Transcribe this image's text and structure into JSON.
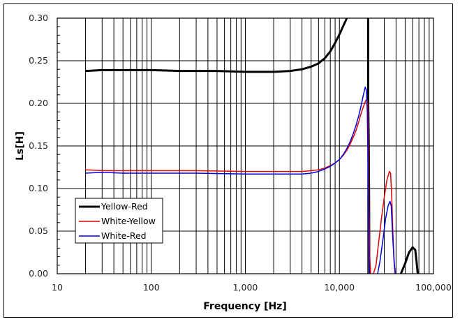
{
  "chart_data": {
    "type": "line",
    "title": "",
    "xlabel": "Frequency [Hz]",
    "ylabel": "Ls[H]",
    "xscale": "log",
    "xlim": [
      10,
      100000
    ],
    "ylim": [
      0,
      0.3
    ],
    "x_tick_labels": [
      "10",
      "100",
      "1,000",
      "10,000",
      "100,000"
    ],
    "x_ticks": [
      10,
      100,
      1000,
      10000,
      100000
    ],
    "y_tick_labels": [
      "0.00",
      "0.05",
      "0.10",
      "0.15",
      "0.20",
      "0.25",
      "0.30"
    ],
    "y_ticks": [
      0,
      0.05,
      0.1,
      0.15,
      0.2,
      0.25,
      0.3
    ],
    "grid": true,
    "legend_position": "lower-left inside plot",
    "series": [
      {
        "name": "Yellow-Red",
        "color": "#000000",
        "width": 3,
        "points": [
          [
            20,
            0.238
          ],
          [
            30,
            0.239
          ],
          [
            50,
            0.239
          ],
          [
            100,
            0.239
          ],
          [
            200,
            0.238
          ],
          [
            500,
            0.238
          ],
          [
            1000,
            0.237
          ],
          [
            2000,
            0.237
          ],
          [
            3000,
            0.238
          ],
          [
            4000,
            0.24
          ],
          [
            5000,
            0.243
          ],
          [
            6000,
            0.247
          ],
          [
            7000,
            0.253
          ],
          [
            8000,
            0.261
          ],
          [
            9000,
            0.271
          ],
          [
            10000,
            0.281
          ],
          [
            11000,
            0.291
          ],
          [
            12000,
            0.3
          ]
        ],
        "segments": [
          [
            [
              20200,
              0.3
            ],
            [
              20200,
              0.21
            ],
            [
              20500,
              0.15
            ],
            [
              20700,
              0.08
            ],
            [
              20800,
              0.0
            ]
          ],
          [
            [
              45000,
              0.0
            ],
            [
              50000,
              0.012
            ],
            [
              55000,
              0.025
            ],
            [
              60000,
              0.031
            ],
            [
              64000,
              0.028
            ],
            [
              66000,
              0.015
            ],
            [
              68000,
              0.0
            ]
          ]
        ]
      },
      {
        "name": "White-Yellow",
        "color": "#e00000",
        "width": 1.5,
        "points": [
          [
            20,
            0.122
          ],
          [
            30,
            0.121
          ],
          [
            100,
            0.121
          ],
          [
            300,
            0.121
          ],
          [
            1000,
            0.12
          ],
          [
            2000,
            0.12
          ],
          [
            4000,
            0.12
          ],
          [
            5000,
            0.121
          ],
          [
            6000,
            0.122
          ],
          [
            7000,
            0.124
          ],
          [
            8000,
            0.127
          ],
          [
            9000,
            0.13
          ],
          [
            10000,
            0.134
          ],
          [
            11000,
            0.139
          ],
          [
            12000,
            0.145
          ],
          [
            13000,
            0.152
          ],
          [
            14000,
            0.16
          ],
          [
            15000,
            0.168
          ],
          [
            16000,
            0.178
          ],
          [
            17000,
            0.188
          ],
          [
            18000,
            0.196
          ],
          [
            19000,
            0.203
          ],
          [
            19600,
            0.205
          ],
          [
            20000,
            0.198
          ],
          [
            20300,
            0.15
          ],
          [
            20600,
            0.08
          ],
          [
            21000,
            0.02
          ],
          [
            21500,
            0.0
          ]
        ],
        "segments": [
          [
            [
              23000,
              0.0
            ],
            [
              24500,
              0.01
            ],
            [
              26000,
              0.035
            ],
            [
              28000,
              0.065
            ],
            [
              30000,
              0.09
            ],
            [
              32000,
              0.11
            ],
            [
              34000,
              0.12
            ],
            [
              35000,
              0.118
            ],
            [
              36000,
              0.09
            ],
            [
              37000,
              0.05
            ],
            [
              38000,
              0.015
            ],
            [
              39000,
              0.0
            ]
          ]
        ]
      },
      {
        "name": "White-Red",
        "color": "#0000e0",
        "width": 1.5,
        "points": [
          [
            20,
            0.118
          ],
          [
            30,
            0.119
          ],
          [
            50,
            0.118
          ],
          [
            100,
            0.118
          ],
          [
            300,
            0.118
          ],
          [
            1000,
            0.117
          ],
          [
            2000,
            0.117
          ],
          [
            4000,
            0.117
          ],
          [
            5000,
            0.118
          ],
          [
            6000,
            0.12
          ],
          [
            7000,
            0.123
          ],
          [
            8000,
            0.126
          ],
          [
            9000,
            0.13
          ],
          [
            10000,
            0.134
          ],
          [
            11000,
            0.14
          ],
          [
            12000,
            0.147
          ],
          [
            13000,
            0.155
          ],
          [
            14000,
            0.164
          ],
          [
            15000,
            0.174
          ],
          [
            16000,
            0.185
          ],
          [
            17000,
            0.197
          ],
          [
            18000,
            0.21
          ],
          [
            18800,
            0.219
          ],
          [
            19400,
            0.215
          ],
          [
            19800,
            0.19
          ],
          [
            20200,
            0.12
          ],
          [
            20500,
            0.05
          ],
          [
            20700,
            0.0
          ]
        ],
        "segments": [
          [
            [
              25500,
              0.0
            ],
            [
              27000,
              0.015
            ],
            [
              29000,
              0.04
            ],
            [
              31000,
              0.065
            ],
            [
              33000,
              0.08
            ],
            [
              34500,
              0.085
            ],
            [
              35500,
              0.08
            ],
            [
              37000,
              0.04
            ],
            [
              38500,
              0.01
            ],
            [
              39500,
              0.0
            ]
          ]
        ]
      }
    ]
  },
  "axes": {
    "x_title": "Frequency [Hz]",
    "y_title": "Ls[H]"
  },
  "legend": {
    "items": [
      {
        "label": "Yellow-Red",
        "color": "#000000"
      },
      {
        "label": "White-Yellow",
        "color": "#e00000"
      },
      {
        "label": "White-Red",
        "color": "#0000e0"
      }
    ]
  }
}
